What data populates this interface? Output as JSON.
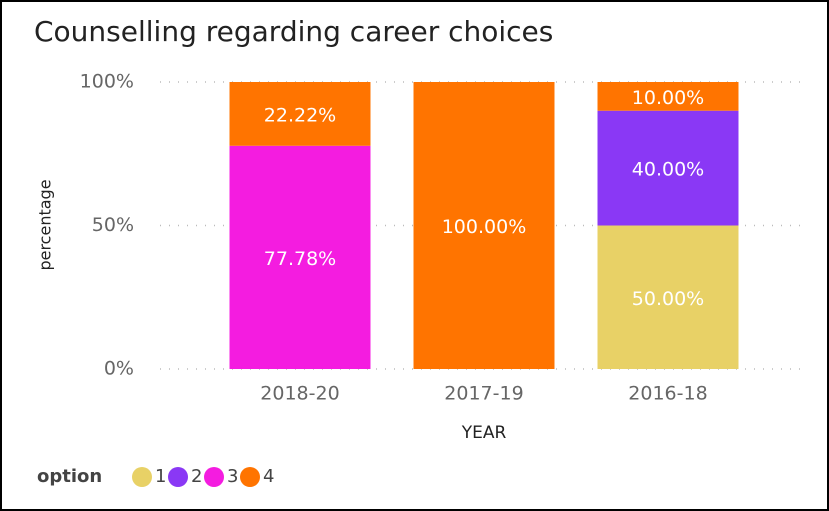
{
  "chart_data": {
    "type": "stacked_bar",
    "title": "Counselling regarding career choices",
    "x_label": "YEAR",
    "y_label": "percentage",
    "legend_title": "option",
    "categories": [
      "2018-20",
      "2017-19",
      "2016-18"
    ],
    "series": [
      {
        "name": "1",
        "color": "#e8d166",
        "values": [
          null,
          null,
          50
        ],
        "value_labels": [
          null,
          null,
          "50.00%"
        ]
      },
      {
        "name": "2",
        "color": "#8a38f5",
        "values": [
          null,
          null,
          40
        ],
        "value_labels": [
          null,
          null,
          "40.00%"
        ]
      },
      {
        "name": "3",
        "color": "#f41ce0",
        "values": [
          77.78,
          null,
          null
        ],
        "value_labels": [
          "77.78%",
          null,
          null
        ]
      },
      {
        "name": "4",
        "color": "#ff7400",
        "values": [
          22.22,
          100,
          10
        ],
        "value_labels": [
          "22.22%",
          "100.00%",
          "10.00%"
        ]
      }
    ],
    "ylim": [
      0,
      100
    ],
    "yticks": [
      {
        "value": 0,
        "label": "0%"
      },
      {
        "value": 50,
        "label": "50%"
      },
      {
        "value": 100,
        "label": "100%"
      }
    ],
    "grid": true
  }
}
